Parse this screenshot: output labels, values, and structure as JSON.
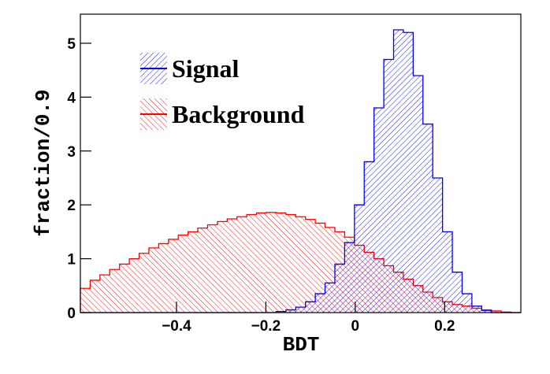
{
  "chart_data": {
    "type": "histogram",
    "xlabel": "BDT",
    "ylabel": "fraction/0.9",
    "bins": [
      -0.615,
      -0.5931,
      -0.5712,
      -0.5493,
      -0.5274,
      -0.5055,
      -0.4836,
      -0.4617,
      -0.4398,
      -0.4179,
      -0.396,
      -0.3741,
      -0.3522,
      -0.3303,
      -0.3084,
      -0.2865,
      -0.2646,
      -0.2427,
      -0.2208,
      -0.1989,
      -0.177,
      -0.1551,
      -0.1332,
      -0.1113,
      -0.0894,
      -0.0675,
      -0.0456,
      -0.0237,
      -0.0018,
      0.0201,
      0.042,
      0.0639,
      0.0858,
      0.1077,
      0.1296,
      0.1515,
      0.1734,
      0.1953,
      0.2172,
      0.2391,
      0.261,
      0.2829,
      0.3048,
      0.3267,
      0.3486,
      0.3705
    ],
    "series": [
      {
        "name": "Signal",
        "color": "#0000ff",
        "values": [
          0,
          0,
          0,
          0,
          0,
          0,
          0,
          0,
          0,
          0,
          0,
          0,
          0,
          0,
          0,
          0,
          0,
          0,
          0,
          0,
          0.02,
          0.05,
          0.1,
          0.2,
          0.35,
          0.55,
          0.9,
          1.3,
          2.0,
          2.8,
          3.8,
          4.7,
          5.25,
          5.2,
          4.4,
          3.5,
          2.5,
          1.5,
          0.75,
          0.35,
          0.12,
          0.04,
          0,
          0,
          0
        ]
      },
      {
        "name": "Background",
        "color": "#ff0000",
        "values": [
          0.45,
          0.6,
          0.7,
          0.8,
          0.9,
          1.0,
          1.1,
          1.2,
          1.28,
          1.36,
          1.44,
          1.5,
          1.57,
          1.63,
          1.69,
          1.74,
          1.78,
          1.82,
          1.85,
          1.86,
          1.85,
          1.82,
          1.78,
          1.73,
          1.66,
          1.58,
          1.5,
          1.4,
          1.25,
          1.12,
          1.0,
          0.87,
          0.75,
          0.62,
          0.5,
          0.38,
          0.28,
          0.2,
          0.15,
          0.12,
          0.08,
          0.05,
          0.03,
          0.01,
          0
        ]
      }
    ],
    "xlim": [
      -0.615,
      0.3705
    ],
    "xticks": [
      {
        "value": -0.4,
        "label": "−0.4"
      },
      {
        "value": -0.2,
        "label": "−0.2"
      },
      0,
      0.2
    ],
    "ylim": [
      0,
      5.54
    ],
    "yticks": [
      0,
      1,
      2,
      3,
      4,
      5
    ],
    "legend": "top-left"
  }
}
